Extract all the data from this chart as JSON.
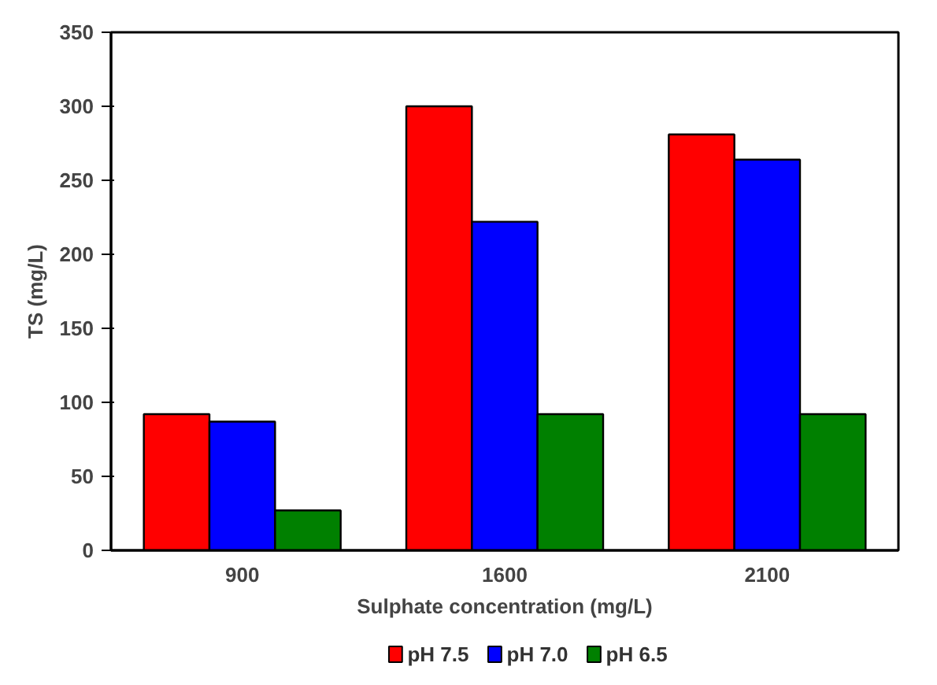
{
  "chart_data": {
    "type": "bar",
    "xlabel": "Sulphate concentration (mg/L)",
    "ylabel": "TS (mg/L)",
    "categories": [
      "900",
      "1600",
      "2100"
    ],
    "series": [
      {
        "name": "pH 7.5",
        "color": "#ff0000",
        "values": [
          92,
          300,
          281
        ]
      },
      {
        "name": "pH 7.0",
        "color": "#0000ff",
        "values": [
          87,
          222,
          264
        ]
      },
      {
        "name": "pH 6.5",
        "color": "#008000",
        "values": [
          27,
          92,
          92
        ]
      }
    ],
    "ylim": [
      0,
      350
    ],
    "yticks": [
      0,
      50,
      100,
      150,
      200,
      250,
      300,
      350
    ],
    "grid": false,
    "legend": "bottom"
  }
}
